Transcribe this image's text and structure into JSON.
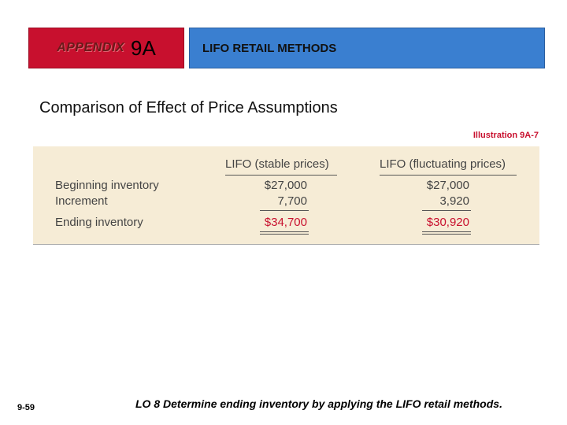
{
  "header": {
    "appendix_word": "APPENDIX",
    "appendix_number": "9A",
    "title": "LIFO RETAIL METHODS"
  },
  "subtitle": "Comparison of Effect of Price Assumptions",
  "illustration_label": "Illustration 9A-7",
  "table": {
    "columns": [
      "LIFO (stable prices)",
      "LIFO (fluctuating prices)"
    ],
    "rows": [
      {
        "label": "Beginning inventory",
        "stable": "$27,000",
        "fluctuating": "$27,000"
      },
      {
        "label": "Increment",
        "stable": "7,700",
        "fluctuating": "3,920"
      },
      {
        "label": "Ending inventory",
        "stable": "$34,700",
        "fluctuating": "$30,920"
      }
    ]
  },
  "footer": {
    "page_number": "9-59",
    "learning_objective": "LO 8  Determine ending inventory by applying the LIFO retail methods."
  },
  "colors": {
    "appendix_banner": "#c8102e",
    "title_banner": "#3a7fd0",
    "table_background": "#f6ecd6",
    "highlight_red": "#c8102e"
  }
}
